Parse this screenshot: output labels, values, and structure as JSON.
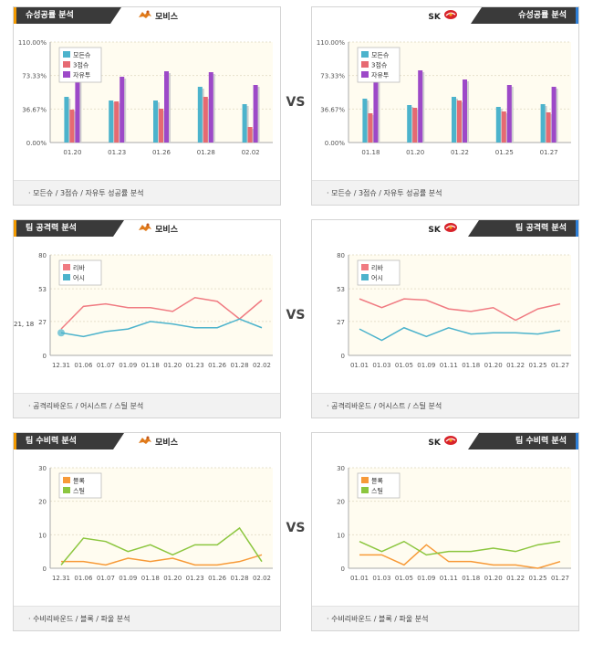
{
  "vs_label": "VS",
  "sections": [
    {
      "left": {
        "tab": "슈성공률 분석",
        "team": "모비스",
        "logo": "mobis-logo",
        "footer": "· 모든슈 / 3점슈 / 자유투 성공률 분석",
        "chart_data": {
          "type": "bar",
          "ylim": [
            0,
            110
          ],
          "yticks": [
            "110.00%",
            "73.33%",
            "36.67%",
            "0.00%"
          ],
          "ytick_values": [
            110,
            73.33,
            36.67,
            0
          ],
          "categories": [
            "01.20",
            "01.23",
            "01.26",
            "01.28",
            "02.02"
          ],
          "series": [
            {
              "name": "모든슈",
              "color": "#4cb3cc",
              "values": [
                50,
                46,
                46,
                61,
                42
              ]
            },
            {
              "name": "3점슈",
              "color": "#e66a72",
              "values": [
                36,
                45,
                37,
                50,
                17
              ]
            },
            {
              "name": "자유투",
              "color": "#9d49c8",
              "values": [
                100,
                72,
                78,
                77,
                63
              ]
            }
          ]
        }
      },
      "right": {
        "tab": "슈성공률 분석",
        "team": "SK",
        "logo": "sk-logo",
        "footer": "· 모든슈 / 3점슈 / 자유투 성공률 분석",
        "chart_data": {
          "type": "bar",
          "ylim": [
            0,
            110
          ],
          "yticks": [
            "110.00%",
            "73.33%",
            "36.67%",
            "0.00%"
          ],
          "ytick_values": [
            110,
            73.33,
            36.67,
            0
          ],
          "categories": [
            "01.18",
            "01.20",
            "01.22",
            "01.25",
            "01.27"
          ],
          "series": [
            {
              "name": "모든슈",
              "color": "#4cb3cc",
              "values": [
                48,
                41,
                50,
                39,
                42
              ]
            },
            {
              "name": "3점슈",
              "color": "#e66a72",
              "values": [
                32,
                38,
                46,
                34,
                33
              ]
            },
            {
              "name": "자유투",
              "color": "#9d49c8",
              "values": [
                100,
                79,
                69,
                63,
                61
              ]
            }
          ]
        }
      }
    },
    {
      "left": {
        "tab": "팀 공격력 분석",
        "team": "모비스",
        "logo": "mobis-logo",
        "footer": "· 공격리바운드 / 어시스트 / 스틸 분석",
        "chart_data": {
          "type": "line",
          "ylim": [
            0,
            80
          ],
          "yticks": [
            "80",
            "53",
            "27",
            "0"
          ],
          "ytick_values": [
            80,
            53,
            27,
            0
          ],
          "categories": [
            "12.31",
            "01.06",
            "01.07",
            "01.09",
            "01.18",
            "01.20",
            "01.23",
            "01.26",
            "01.28",
            "02.02"
          ],
          "series": [
            {
              "name": "리바",
              "color": "#f07b82",
              "values": [
                21,
                39,
                41,
                38,
                38,
                35,
                46,
                43,
                29,
                44
              ]
            },
            {
              "name": "어시",
              "color": "#4cb3cc",
              "values": [
                18,
                15,
                19,
                21,
                27,
                25,
                22,
                22,
                29,
                22
              ]
            }
          ],
          "tooltip": "21, 18"
        }
      },
      "right": {
        "tab": "팀 공격력 분석",
        "team": "SK",
        "logo": "sk-logo",
        "footer": "· 공격리바운드 / 어시스트 / 스틸 분석",
        "chart_data": {
          "type": "line",
          "ylim": [
            0,
            80
          ],
          "yticks": [
            "80",
            "53",
            "27",
            "0"
          ],
          "ytick_values": [
            80,
            53,
            27,
            0
          ],
          "categories": [
            "01.01",
            "01.03",
            "01.05",
            "01.09",
            "01.11",
            "01.18",
            "01.20",
            "01.22",
            "01.25",
            "01.27"
          ],
          "series": [
            {
              "name": "리바",
              "color": "#f07b82",
              "values": [
                45,
                38,
                45,
                44,
                37,
                35,
                38,
                28,
                37,
                41
              ]
            },
            {
              "name": "어시",
              "color": "#4cb3cc",
              "values": [
                21,
                12,
                22,
                15,
                22,
                17,
                18,
                18,
                17,
                20
              ]
            }
          ]
        }
      }
    },
    {
      "left": {
        "tab": "팀 수비력 분석",
        "team": "모비스",
        "logo": "mobis-logo",
        "footer": "· 수비리바운드 / 블록 / 파울 분석",
        "chart_data": {
          "type": "line",
          "ylim": [
            0,
            30
          ],
          "yticks": [
            "30",
            "20",
            "10",
            "0"
          ],
          "ytick_values": [
            30,
            20,
            10,
            0
          ],
          "categories": [
            "12.31",
            "01.06",
            "01.07",
            "01.09",
            "01.18",
            "01.20",
            "01.23",
            "01.26",
            "01.28",
            "02.02"
          ],
          "series": [
            {
              "name": "블록",
              "color": "#f79a38",
              "values": [
                2,
                2,
                1,
                3,
                2,
                3,
                1,
                1,
                2,
                4
              ]
            },
            {
              "name": "스틸",
              "color": "#8cc63f",
              "values": [
                1,
                9,
                8,
                5,
                7,
                4,
                7,
                7,
                12,
                2
              ]
            }
          ]
        }
      },
      "right": {
        "tab": "팀 수비력 분석",
        "team": "SK",
        "logo": "sk-logo",
        "footer": "· 수비리바운드 / 블록 / 파울 분석",
        "chart_data": {
          "type": "line",
          "ylim": [
            0,
            30
          ],
          "yticks": [
            "30",
            "20",
            "10",
            "0"
          ],
          "ytick_values": [
            30,
            20,
            10,
            0
          ],
          "categories": [
            "01.01",
            "01.03",
            "01.05",
            "01.09",
            "01.11",
            "01.18",
            "01.20",
            "01.22",
            "01.25",
            "01.27"
          ],
          "series": [
            {
              "name": "블록",
              "color": "#f79a38",
              "values": [
                4,
                4,
                1,
                7,
                2,
                2,
                1,
                1,
                0,
                2
              ]
            },
            {
              "name": "스틸",
              "color": "#8cc63f",
              "values": [
                8,
                5,
                8,
                4,
                5,
                5,
                6,
                5,
                7,
                8
              ]
            }
          ]
        }
      }
    }
  ]
}
